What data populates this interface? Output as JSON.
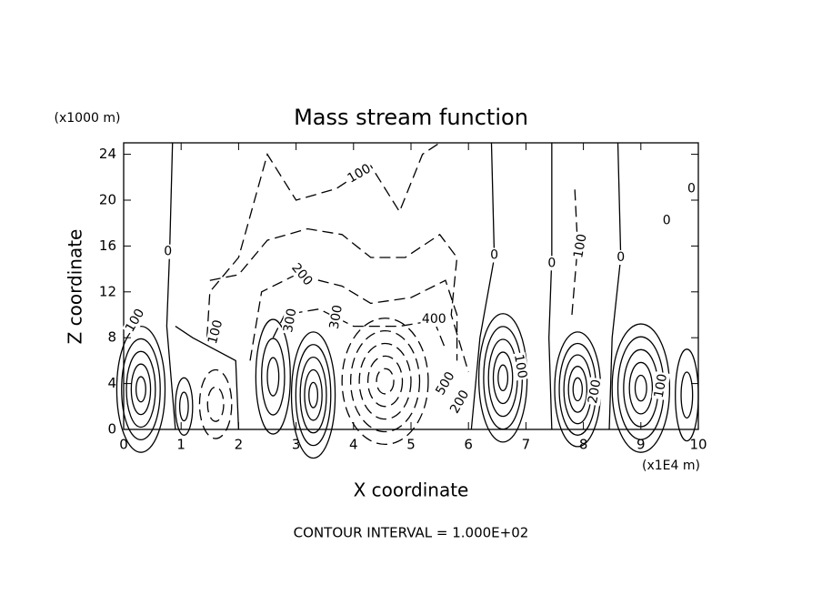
{
  "chart_data": {
    "type": "contour",
    "title": "Mass stream function",
    "xlabel": "X coordinate",
    "ylabel": "Z coordinate",
    "x_unit": "(x1E4 m)",
    "y_unit": "(x1000 m)",
    "footnote": "CONTOUR INTERVAL = 1.000E+02",
    "xlim": [
      0,
      10
    ],
    "xticks": [
      0,
      1,
      2,
      3,
      4,
      5,
      6,
      7,
      8,
      9,
      10
    ],
    "ylim": [
      0,
      25
    ],
    "yticks": [
      0,
      4,
      8,
      12,
      16,
      20,
      24
    ],
    "contour_labels": [
      100,
      0,
      100,
      100,
      200,
      300,
      300,
      400,
      500,
      200,
      0,
      100,
      0,
      100,
      0,
      200,
      100,
      0,
      0
    ],
    "color": "#000000"
  }
}
